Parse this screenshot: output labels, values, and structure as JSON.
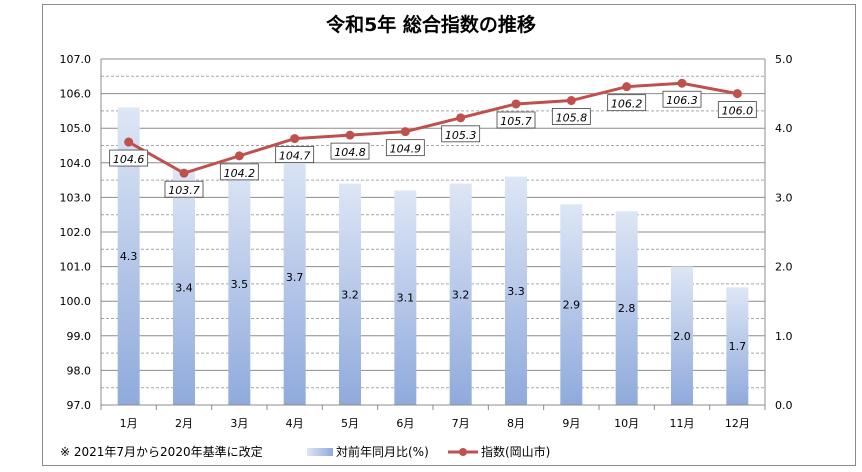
{
  "chart_data": {
    "type": "bar+line",
    "title": "令和5年  総合指数の推移",
    "categories": [
      "1月",
      "2月",
      "3月",
      "4月",
      "5月",
      "6月",
      "7月",
      "8月",
      "9月",
      "10月",
      "11月",
      "12月"
    ],
    "series": [
      {
        "name": "対前年同月比(%)",
        "type": "bar",
        "axis": "right",
        "values": [
          4.3,
          3.4,
          3.5,
          3.7,
          3.2,
          3.1,
          3.2,
          3.3,
          2.9,
          2.8,
          2.0,
          1.7
        ],
        "labels": [
          "4.3",
          "3.4",
          "3.5",
          "3.7",
          "3.2",
          "3.1",
          "3.2",
          "3.3",
          "2.9",
          "2.8",
          "2.0",
          "1.7"
        ]
      },
      {
        "name": "指数(岡山市)",
        "type": "line",
        "axis": "left",
        "values": [
          104.6,
          103.7,
          104.2,
          104.7,
          104.8,
          104.9,
          105.3,
          105.7,
          105.8,
          106.2,
          106.3,
          106.0
        ],
        "labels": [
          "104.6",
          "103.7",
          "104.2",
          "104.7",
          "104.8",
          "104.9",
          "105.3",
          "105.7",
          "105.8",
          "106.2",
          "106.3",
          "106.0"
        ]
      }
    ],
    "left_axis": {
      "ylim": [
        97.0,
        107.0
      ],
      "ticks": [
        "97.0",
        "98.0",
        "99.0",
        "100.0",
        "101.0",
        "102.0",
        "103.0",
        "104.0",
        "105.0",
        "106.0",
        "107.0"
      ]
    },
    "right_axis": {
      "ylim": [
        0.0,
        5.0
      ],
      "ticks": [
        "0.0",
        "1.0",
        "2.0",
        "3.0",
        "4.0",
        "5.0"
      ]
    },
    "grid": true,
    "legend_placement": "bottom",
    "note": "※ 2021年7月から2020年基準に改定",
    "colors": {
      "bar_top": "#dde6f5",
      "bar_bottom": "#8faadc",
      "line": "#c0504d"
    }
  }
}
